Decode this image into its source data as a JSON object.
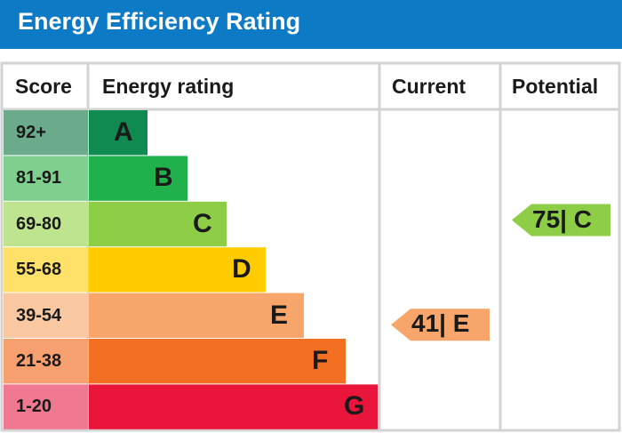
{
  "header": {
    "title": "Energy Efficiency Rating"
  },
  "columns": {
    "score": "Score",
    "energy_rating": "Energy rating",
    "current": "Current",
    "potential": "Potential"
  },
  "chart_data": {
    "type": "bar",
    "bands": [
      {
        "score": "92+",
        "letter": "A",
        "color": "#0f8a50",
        "score_bg": "#6bab8b"
      },
      {
        "score": "81-91",
        "letter": "B",
        "color": "#20b14c",
        "score_bg": "#7fd08e"
      },
      {
        "score": "69-80",
        "letter": "C",
        "color": "#8dce46",
        "score_bg": "#bfe490"
      },
      {
        "score": "55-68",
        "letter": "D",
        "color": "#ffcc00",
        "score_bg": "#ffe069"
      },
      {
        "score": "39-54",
        "letter": "E",
        "color": "#f7a56a",
        "score_bg": "#f9c7a0"
      },
      {
        "score": "21-38",
        "letter": "F",
        "color": "#f36f21",
        "score_bg": "#f6a070"
      },
      {
        "score": "1-20",
        "letter": "G",
        "color": "#e9153b",
        "score_bg": "#f07890"
      }
    ],
    "current": {
      "value": 41,
      "letter": "E",
      "label": "41| E",
      "color": "#f7a56a"
    },
    "potential": {
      "value": 75,
      "letter": "C",
      "label": "75| C",
      "color": "#8dce46"
    }
  }
}
